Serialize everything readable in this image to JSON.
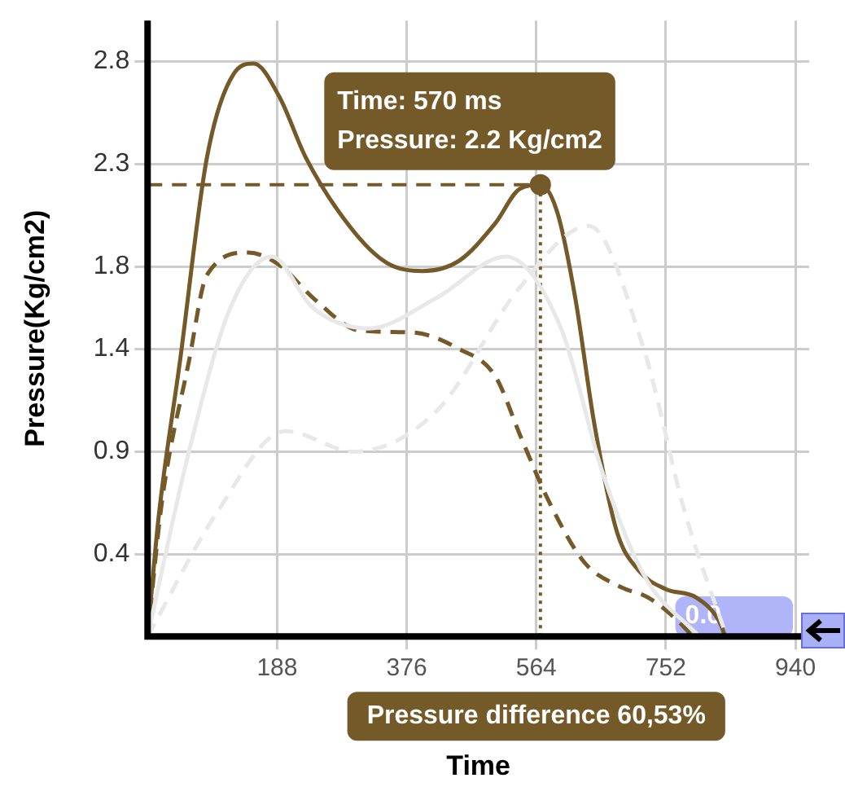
{
  "chart_data": {
    "type": "line",
    "xlabel": "Time",
    "ylabel": "Pressure(Kg/cm2)",
    "xlim": [
      0,
      960
    ],
    "xticks": [
      188,
      376,
      564,
      752,
      940
    ],
    "ylim": [
      0,
      3.0
    ],
    "yticks": [
      0.4,
      0.9,
      1.4,
      1.8,
      2.3,
      2.8
    ],
    "grid": true,
    "legend": false,
    "marker": "none",
    "series": [
      {
        "color": "#e8e8e8",
        "line_style": "solid",
        "x": [
          0,
          60,
          120,
          180,
          240,
          320,
          420,
          520,
          600,
          660,
          720,
          800
        ],
        "values": [
          0,
          0.9,
          1.6,
          1.85,
          1.6,
          1.5,
          1.65,
          1.85,
          1.5,
          0.8,
          0.3,
          0
        ]
      },
      {
        "color": "#e8e8e8",
        "line_style": "dashed",
        "x": [
          0,
          100,
          200,
          300,
          420,
          540,
          640,
          720,
          780,
          840
        ],
        "values": [
          0,
          0.6,
          1.0,
          0.9,
          1.1,
          1.7,
          2.0,
          1.4,
          0.6,
          0
        ]
      },
      {
        "color": "#735a28",
        "line_style": "solid",
        "x": [
          0,
          16,
          47,
          86,
          125,
          154,
          191,
          230,
          295,
          347,
          399,
          452,
          504,
          540,
          570,
          595,
          621,
          648,
          681,
          713,
          752,
          796,
          830,
          838
        ],
        "values": [
          0,
          0.58,
          1.34,
          2.33,
          2.74,
          2.79,
          2.63,
          2.33,
          1.99,
          1.82,
          1.78,
          1.83,
          2.01,
          2.18,
          2.2,
          2.06,
          1.64,
          1.04,
          0.51,
          0.32,
          0.23,
          0.19,
          0.07,
          0
        ]
      },
      {
        "color": "#735a28",
        "line_style": "dashed",
        "x": [
          0,
          21,
          60,
          86,
          146,
          191,
          243,
          308,
          386,
          452,
          504,
          543,
          582,
          634,
          687,
          726,
          765,
          791
        ],
        "values": [
          0,
          0.66,
          1.34,
          1.76,
          1.87,
          1.81,
          1.64,
          1.49,
          1.48,
          1.4,
          1.27,
          0.96,
          0.66,
          0.36,
          0.24,
          0.19,
          0.09,
          0
        ]
      },
      {
        "type": "scatter",
        "marker": "circle",
        "color": "#735a28",
        "x": [
          570
        ],
        "values": [
          2.2
        ]
      }
    ],
    "ref_lines": [
      {
        "axis": "x",
        "value": 570,
        "color": "#735a28",
        "line_style": "dotted"
      },
      {
        "axis": "y",
        "value": 2.2,
        "color": "#735a28",
        "line_style": "dashed"
      }
    ],
    "annotations": [
      "Time: 570 ms",
      {
        "text": "Pressure: 2.2 Kg/cm2",
        "x": 570,
        "y": 2.2
      },
      {
        "text": "0.0",
        "x": 780,
        "y": 0.1
      },
      "Pressure difference 60,53%"
    ]
  }
}
